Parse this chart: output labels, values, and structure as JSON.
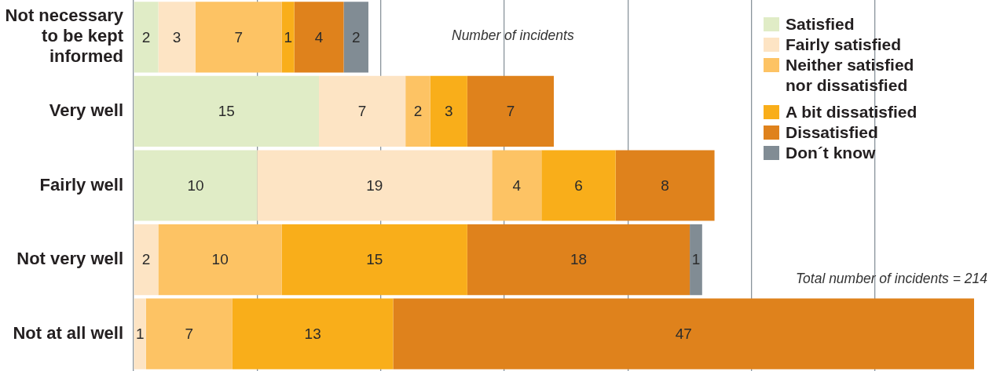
{
  "chart_data": {
    "type": "bar",
    "orientation": "horizontal",
    "stacked": true,
    "xlabel": "Number of incidents",
    "annotations": [
      "Total number of incidents = 214"
    ],
    "categories": [
      "Not necessary to be kept informed",
      "Very well",
      "Fairly well",
      "Not very well",
      "Not at all well"
    ],
    "series": [
      {
        "name": "Satisfied",
        "color": "#e0ecc6",
        "values": [
          2,
          15,
          10,
          null,
          null
        ]
      },
      {
        "name": "Fairly satisfied",
        "color": "#fde4c4",
        "values": [
          3,
          7,
          19,
          2,
          1
        ]
      },
      {
        "name": "Neither satisfied nor dissatisfied",
        "color": "#fdc364",
        "values": [
          7,
          2,
          4,
          10,
          7
        ]
      },
      {
        "name": "A bit dissatisfied",
        "color": "#f9ae1a",
        "values": [
          1,
          3,
          6,
          15,
          13
        ]
      },
      {
        "name": "Dissatisfied",
        "color": "#df821c",
        "values": [
          4,
          7,
          8,
          18,
          47
        ]
      },
      {
        "name": "Don´t know",
        "color": "#818c94",
        "values": [
          2,
          null,
          null,
          1,
          null
        ]
      }
    ],
    "xticks": [
      {
        "value": 0,
        "label": null
      },
      {
        "value": 10,
        "label": null
      },
      {
        "value": 20,
        "label": null
      },
      {
        "value": 30,
        "label": null
      },
      {
        "value": 40,
        "label": null
      },
      {
        "value": 50,
        "label": null
      },
      {
        "value": 60,
        "label": null
      }
    ],
    "tick_labels": "y",
    "grid": "x",
    "legend": "top right",
    "data_labels": true
  }
}
